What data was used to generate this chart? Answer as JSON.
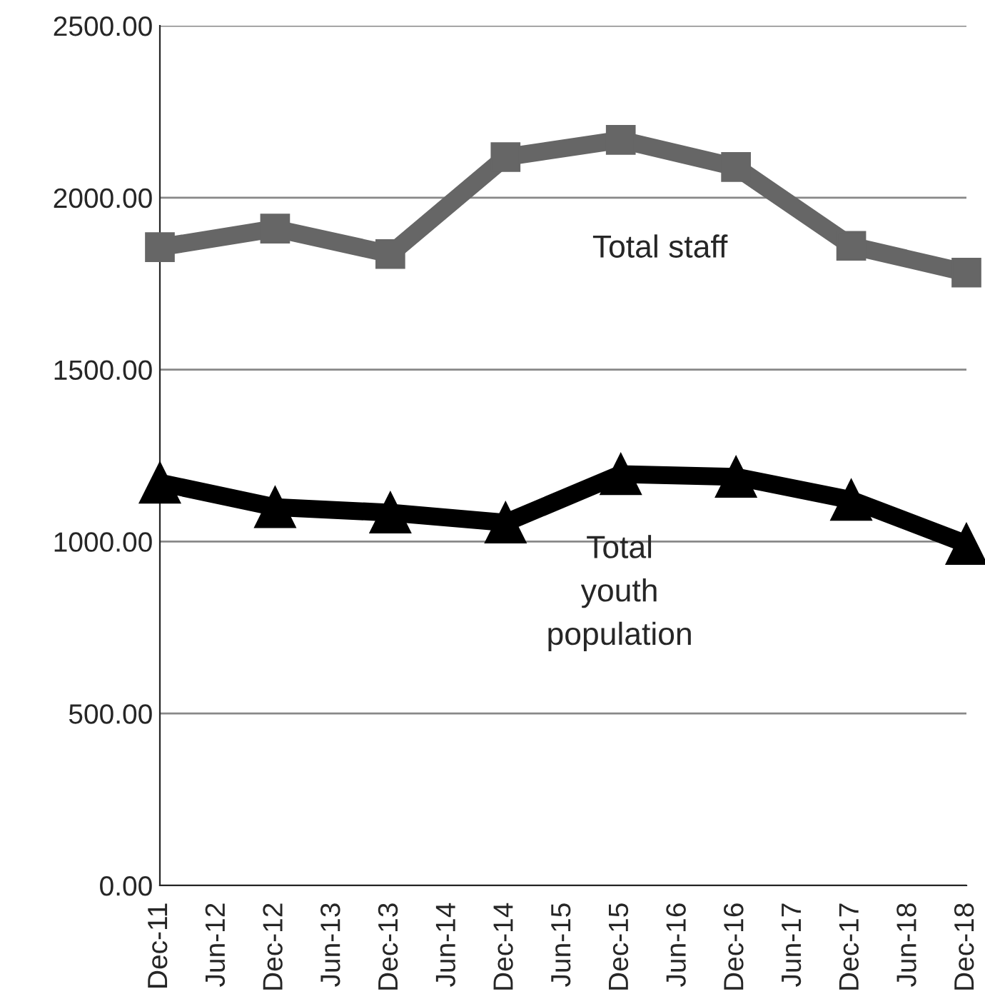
{
  "chart_data": {
    "type": "line",
    "categories": [
      "Dec-11",
      "Jun-12",
      "Dec-12",
      "Jun-13",
      "Dec-13",
      "Jun-14",
      "Dec-14",
      "Jun-15",
      "Dec-15",
      "Jun-16",
      "Dec-16",
      "Jun-17",
      "Dec-17",
      "Jun-18",
      "Dec-18"
    ],
    "series": [
      {
        "name": "Total staff",
        "color": "#666666",
        "marker": "square",
        "x": [
          "Dec-11",
          "Dec-12",
          "Dec-13",
          "Dec-14",
          "Dec-15",
          "Dec-16",
          "Dec-17",
          "Dec-18"
        ],
        "values": [
          1856,
          1910,
          1836,
          2118,
          2168,
          2089,
          1860,
          1782
        ]
      },
      {
        "name": "Total\nyouth\npopulation",
        "color": "#000000",
        "marker": "triangle",
        "x": [
          "Dec-11",
          "Dec-12",
          "Dec-13",
          "Dec-14",
          "Dec-15",
          "Dec-16",
          "Dec-17",
          "Dec-18"
        ],
        "values": [
          1171,
          1100,
          1084,
          1055,
          1196,
          1188,
          1121,
          993
        ]
      }
    ],
    "ylim": [
      0,
      2500
    ],
    "yticks": [
      {
        "value": 0,
        "label": "0.00"
      },
      {
        "value": 500,
        "label": "500.00"
      },
      {
        "value": 1000,
        "label": "1000.00"
      },
      {
        "value": 1500,
        "label": "1500.00"
      },
      {
        "value": 2000,
        "label": "2000.00"
      },
      {
        "value": 2500,
        "label": "2500.00"
      }
    ],
    "grid": "y",
    "legend": false,
    "line_style": "solid"
  }
}
